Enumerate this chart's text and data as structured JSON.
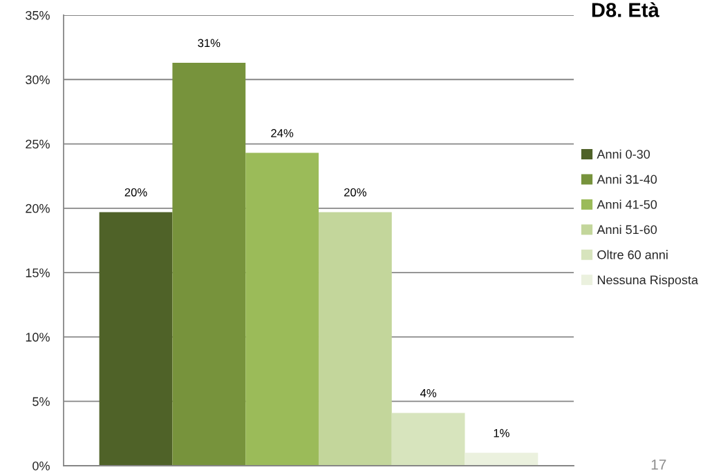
{
  "chart_data": {
    "type": "bar",
    "title": "D8. Età",
    "categories": [
      null
    ],
    "series": [
      {
        "name": "Anni 0-30",
        "color": "#4f6228",
        "values": [
          19.7
        ],
        "value_labels": [
          "20%"
        ]
      },
      {
        "name": "Anni 31-40",
        "color": "#77933c",
        "values": [
          31.3
        ],
        "value_labels": [
          "31%"
        ]
      },
      {
        "name": "Anni 41-50",
        "color": "#9bbb59",
        "values": [
          24.3
        ],
        "value_labels": [
          "24%"
        ]
      },
      {
        "name": "Anni 51-60",
        "color": "#c3d69b",
        "values": [
          19.7
        ],
        "value_labels": [
          "20%"
        ]
      },
      {
        "name": "Oltre 60 anni",
        "color": "#d7e4bd",
        "values": [
          4.1
        ],
        "value_labels": [
          "4%"
        ]
      },
      {
        "name": "Nessuna Risposta",
        "color": "#ebf1de",
        "values": [
          1.0
        ],
        "value_labels": [
          "1%"
        ]
      }
    ],
    "ylim": [
      0,
      35
    ],
    "yticks": [
      {
        "value": 0,
        "label": "0%"
      },
      {
        "value": 5,
        "label": "5%"
      },
      {
        "value": 10,
        "label": "10%"
      },
      {
        "value": 15,
        "label": "15%"
      },
      {
        "value": 20,
        "label": "20%"
      },
      {
        "value": 25,
        "label": "25%"
      },
      {
        "value": 30,
        "label": "30%"
      },
      {
        "value": 35,
        "label": "35%"
      }
    ],
    "grid": "y",
    "legend": "right",
    "tick_labels": "y",
    "annotations": [
      "17"
    ]
  }
}
